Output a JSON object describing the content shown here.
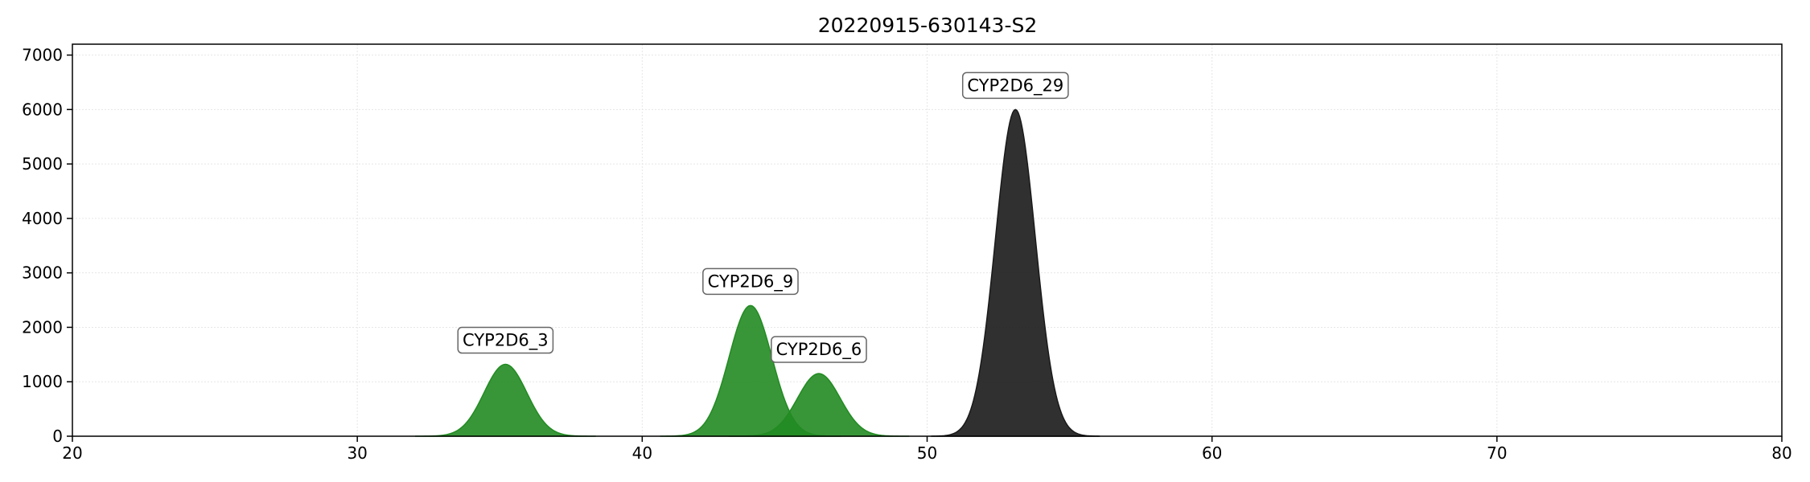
{
  "chart_data": {
    "type": "area",
    "title": "20220915-630143-S2",
    "xlabel": "",
    "ylabel": "",
    "xlim": [
      20,
      80
    ],
    "ylim": [
      0,
      7200
    ],
    "x_ticks": [
      20,
      30,
      40,
      50,
      60,
      70,
      80
    ],
    "y_ticks": [
      0,
      1000,
      2000,
      3000,
      4000,
      5000,
      6000,
      7000
    ],
    "grid": true,
    "legend": "none",
    "peaks": [
      {
        "label": "CYP2D6_3",
        "center": 35.2,
        "height": 1320,
        "sigma": 0.75,
        "color": "#228B22"
      },
      {
        "label": "CYP2D6_9",
        "center": 43.8,
        "height": 2400,
        "sigma": 0.75,
        "color": "#228B22"
      },
      {
        "label": "CYP2D6_6",
        "center": 46.2,
        "height": 1150,
        "sigma": 0.75,
        "color": "#228B22"
      },
      {
        "label": "CYP2D6_29",
        "center": 53.1,
        "height": 6000,
        "sigma": 0.7,
        "color": "#1a1a1a"
      }
    ]
  }
}
